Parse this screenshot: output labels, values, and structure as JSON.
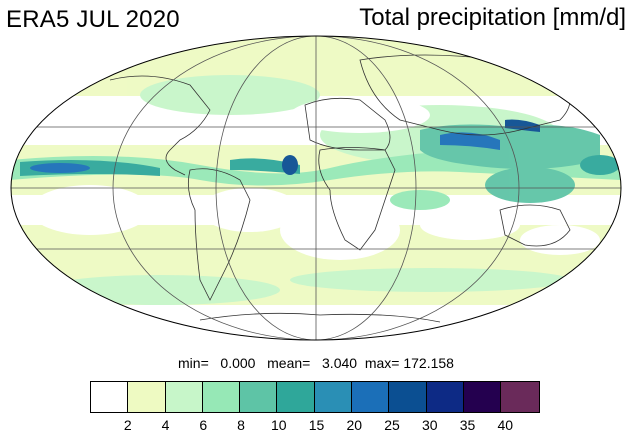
{
  "title_left": "ERA5 JUL 2020",
  "title_right": "Total precipitation [mm/d]",
  "stats": {
    "min_label": "min=",
    "min_value": "0.000",
    "mean_label": "mean=",
    "mean_value": "3.040",
    "max_label": "max=",
    "max_value": "172.158"
  },
  "colorbar": {
    "colors": [
      "#ffffff",
      "#eefac2",
      "#c7f6c9",
      "#96e8b6",
      "#5ec4a6",
      "#2fa79a",
      "#2a8fb5",
      "#1b6fb8",
      "#0b4f92",
      "#0d2a85",
      "#24004f",
      "#6a2a5a"
    ],
    "tick_labels": [
      "2",
      "4",
      "6",
      "8",
      "10",
      "15",
      "20",
      "25",
      "30",
      "35",
      "40"
    ]
  },
  "map": {
    "projection": "mollweide",
    "ocean_color": "#ffffff",
    "land_outline": "#333333",
    "grid_color": "#555555"
  }
}
